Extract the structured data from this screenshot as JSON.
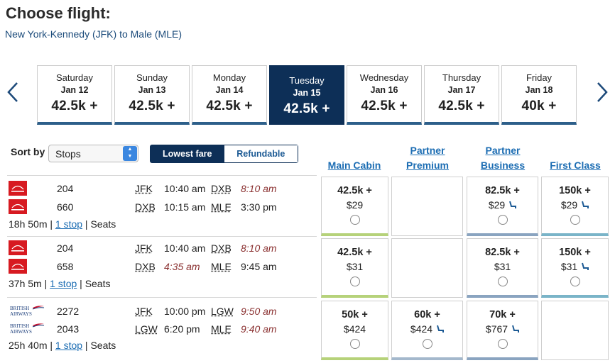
{
  "header": {
    "title": "Choose flight:",
    "route": "New York-Kennedy (JFK) to Male (MLE)"
  },
  "date_tabs": [
    {
      "day": "Saturday",
      "date": "Jan 12",
      "fare": "42.5k +"
    },
    {
      "day": "Sunday",
      "date": "Jan 13",
      "fare": "42.5k +"
    },
    {
      "day": "Monday",
      "date": "Jan 14",
      "fare": "42.5k +"
    },
    {
      "day": "Tuesday",
      "date": "Jan 15",
      "fare": "42.5k +",
      "selected": true
    },
    {
      "day": "Wednesday",
      "date": "Jan 16",
      "fare": "42.5k +"
    },
    {
      "day": "Thursday",
      "date": "Jan 17",
      "fare": "42.5k +"
    },
    {
      "day": "Friday",
      "date": "Jan 18",
      "fare": "40k +"
    }
  ],
  "sort": {
    "label": "Sort by",
    "selected": "Stops"
  },
  "fare_toggle": {
    "active": "Lowest fare",
    "inactive": "Refundable"
  },
  "columns": {
    "main": "Main Cabin",
    "partner_premium_1": "Partner",
    "partner_premium_2": "Premium",
    "partner_business_1": "Partner",
    "partner_business_2": "Business",
    "first": "First Class"
  },
  "flights": [
    {
      "airline": "Emirates",
      "legs": [
        {
          "flight": "204",
          "from": "JFK",
          "dep": "10:40 am",
          "to": "DXB",
          "arr": "8:10 am",
          "dep_red": false,
          "arr_red": true
        },
        {
          "flight": "660",
          "from": "DXB",
          "dep": "10:15 am",
          "to": "MLE",
          "arr": "3:30 pm",
          "dep_red": false,
          "arr_red": false
        }
      ],
      "duration": "18h 50m",
      "stops": "1 stop",
      "seats": "Seats",
      "fares": {
        "main": {
          "miles": "42.5k +",
          "cash": "$29"
        },
        "premium": null,
        "business": {
          "miles": "82.5k +",
          "cash": "$29",
          "seat_icon": true
        },
        "first": {
          "miles": "150k +",
          "cash": "$29",
          "seat_icon": true
        }
      }
    },
    {
      "airline": "Emirates",
      "legs": [
        {
          "flight": "204",
          "from": "JFK",
          "dep": "10:40 am",
          "to": "DXB",
          "arr": "8:10 am",
          "dep_red": false,
          "arr_red": true
        },
        {
          "flight": "658",
          "from": "DXB",
          "dep": "4:35 am",
          "to": "MLE",
          "arr": "9:45 am",
          "dep_red": true,
          "arr_red": false
        }
      ],
      "duration": "37h 5m",
      "stops": "1 stop",
      "seats": "Seats",
      "fares": {
        "main": {
          "miles": "42.5k +",
          "cash": "$31"
        },
        "premium": null,
        "business": {
          "miles": "82.5k +",
          "cash": "$31"
        },
        "first": {
          "miles": "150k +",
          "cash": "$31",
          "seat_icon": true
        }
      }
    },
    {
      "airline": "British Airways",
      "legs": [
        {
          "flight": "2272",
          "from": "JFK",
          "dep": "10:00 pm",
          "to": "LGW",
          "arr": "9:50 am",
          "dep_red": false,
          "arr_red": true
        },
        {
          "flight": "2043",
          "from": "LGW",
          "dep": "6:20 pm",
          "to": "MLE",
          "arr": "9:40 am",
          "dep_red": false,
          "arr_red": true
        }
      ],
      "duration": "25h 40m",
      "stops": "1 stop",
      "seats": "Seats",
      "fares": {
        "main": {
          "miles": "50k +",
          "cash": "$424"
        },
        "premium": {
          "miles": "60k +",
          "cash": "$424",
          "seat_icon": true
        },
        "business": {
          "miles": "70k +",
          "cash": "$767",
          "seat_icon": true
        },
        "first": null
      }
    }
  ],
  "colors": {
    "selected_tab": "#0d2f57",
    "link": "#1c6db3",
    "late_time": "#8a3030",
    "main_bar": "#b6d27a",
    "premium_bar": "#a4b8cc",
    "business_bar": "#8aa4c0",
    "first_bar": "#7ab4c8",
    "emirates_red": "#d71a21",
    "ba_blue": "#1b3d7a"
  }
}
